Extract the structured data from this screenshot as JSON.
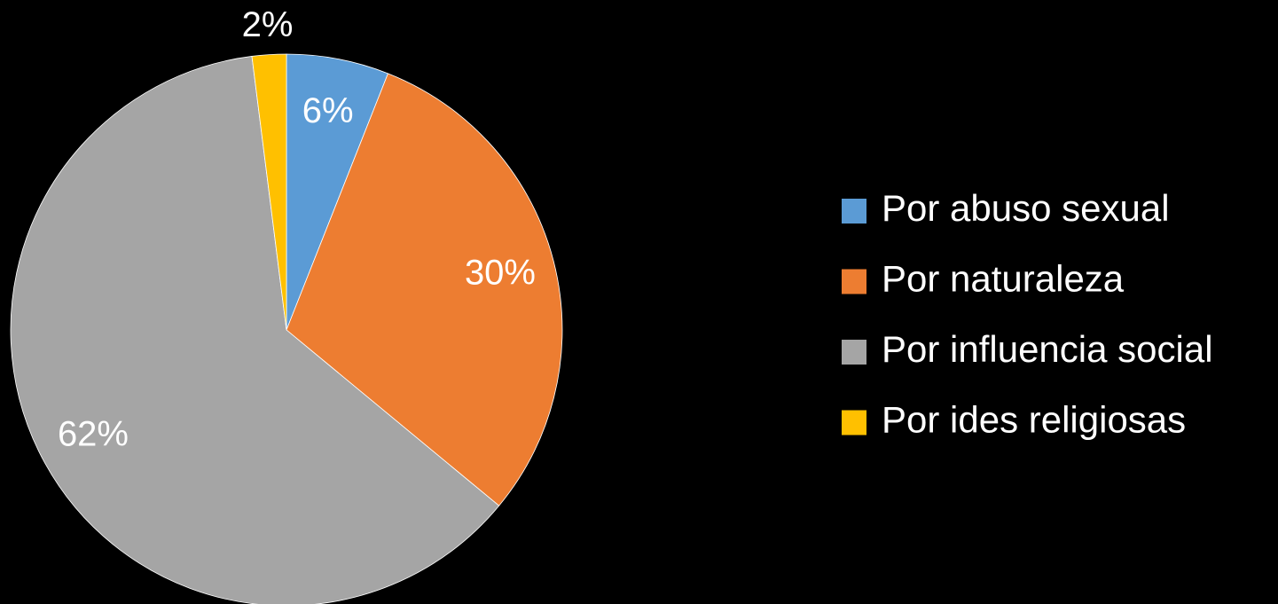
{
  "chart_data": {
    "type": "pie",
    "categories": [
      "Por abuso sexual",
      "Por naturaleza",
      "Por influencia social",
      "Por ides religiosas"
    ],
    "values": [
      6,
      30,
      62,
      2
    ],
    "value_labels": [
      "6%",
      "30%",
      "62%",
      "2%"
    ],
    "colors": [
      "#5b9bd5",
      "#ed7d31",
      "#a5a5a5",
      "#ffc000"
    ],
    "legend": "right"
  }
}
